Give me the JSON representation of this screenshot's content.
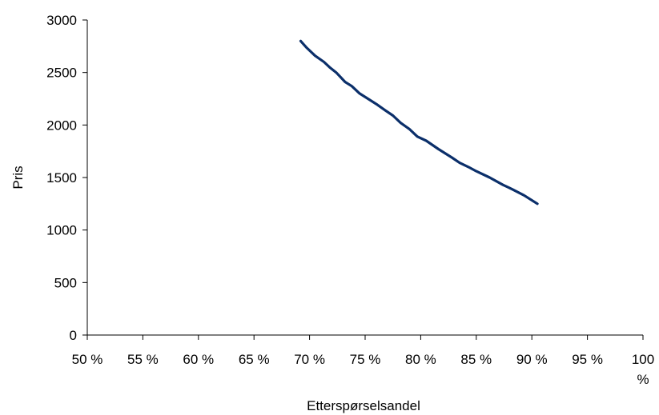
{
  "chart_data": {
    "type": "line",
    "title": "",
    "xlabel": "Etterspørselsandel",
    "ylabel": "Pris",
    "xlim": [
      0.5,
      1.0
    ],
    "ylim": [
      0,
      3000
    ],
    "x_ticks": [
      0.5,
      0.55,
      0.6,
      0.65,
      0.7,
      0.75,
      0.8,
      0.85,
      0.9,
      0.95,
      1.0
    ],
    "x_tick_labels": [
      "50 %",
      "55 %",
      "60 %",
      "65 %",
      "70 %",
      "75 %",
      "80 %",
      "85 %",
      "90 %",
      "95 %",
      "100 %"
    ],
    "y_ticks": [
      0,
      500,
      1000,
      1500,
      2000,
      2500,
      3000
    ],
    "y_tick_labels": [
      "0",
      "500",
      "1000",
      "1500",
      "2000",
      "2500",
      "3000"
    ],
    "grid": false,
    "legend": "none",
    "colors": {
      "line": "#0b2f6a",
      "axis": "#000000"
    },
    "series": [
      {
        "values": [
          [
            0.692,
            2800
          ],
          [
            0.697,
            2740
          ],
          [
            0.705,
            2660
          ],
          [
            0.713,
            2600
          ],
          [
            0.718,
            2550
          ],
          [
            0.724,
            2500
          ],
          [
            0.732,
            2410
          ],
          [
            0.738,
            2370
          ],
          [
            0.745,
            2300
          ],
          [
            0.76,
            2200
          ],
          [
            0.768,
            2140
          ],
          [
            0.775,
            2090
          ],
          [
            0.782,
            2020
          ],
          [
            0.79,
            1960
          ],
          [
            0.797,
            1890
          ],
          [
            0.805,
            1850
          ],
          [
            0.816,
            1770
          ],
          [
            0.828,
            1690
          ],
          [
            0.835,
            1640
          ],
          [
            0.843,
            1600
          ],
          [
            0.85,
            1560
          ],
          [
            0.862,
            1500
          ],
          [
            0.874,
            1430
          ],
          [
            0.882,
            1390
          ],
          [
            0.893,
            1330
          ],
          [
            0.905,
            1250
          ]
        ]
      }
    ]
  }
}
